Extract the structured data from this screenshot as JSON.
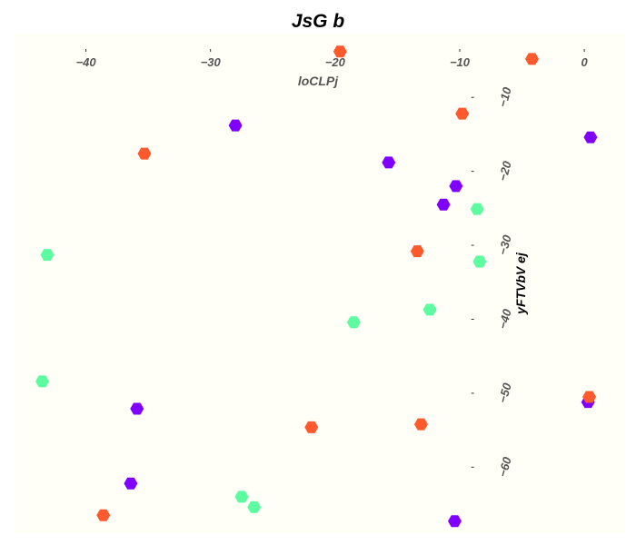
{
  "chart_data": {
    "type": "scatter",
    "title": "JsG b",
    "xlabel": "loCLPj",
    "ylabel": "yFTVbV ej",
    "xlim": [
      -45.8,
      3.2
    ],
    "ylim": [
      -68.8,
      -1.5
    ],
    "x_ticks": [
      -40,
      -30,
      -20,
      -10,
      0
    ],
    "x_tick_labels": [
      "−40",
      "−30",
      "−20",
      "−10",
      "0"
    ],
    "y_ticks": [
      -10,
      -20,
      -30,
      -40,
      -50,
      -60
    ],
    "y_tick_labels": [
      "−10",
      "−20",
      "−30",
      "−40",
      "−50",
      "−60"
    ],
    "x_axis_position": "top",
    "y_axis_position": "x=-9",
    "grid": false,
    "background": "#fffef7",
    "marker": "hexagon",
    "series": [
      {
        "color": "#8000ff",
        "x": [
          -28.0,
          0.5,
          -15.7,
          -10.3,
          -11.3,
          -35.9,
          0.3,
          -36.4,
          -10.4
        ],
        "y": [
          -13.8,
          -15.4,
          -18.8,
          -22.0,
          -24.5,
          -52.1,
          -51.2,
          -62.2,
          -67.3
        ]
      },
      {
        "color": "#ff5a2d",
        "x": [
          -19.6,
          -4.2,
          -9.8,
          -35.3,
          -13.4,
          -21.9,
          -13.1,
          0.4,
          -38.6
        ],
        "y": [
          -3.8,
          -4.8,
          -12.2,
          -17.6,
          -30.8,
          -54.6,
          -54.2,
          -50.5,
          -66.5
        ]
      },
      {
        "color": "#5dfca0",
        "x": [
          -8.6,
          -43.1,
          -8.4,
          -12.4,
          -18.5,
          -43.5,
          -27.5,
          -26.5
        ],
        "y": [
          -25.1,
          -31.3,
          -32.2,
          -38.7,
          -40.4,
          -48.4,
          -64.0,
          -65.4
        ]
      }
    ]
  }
}
